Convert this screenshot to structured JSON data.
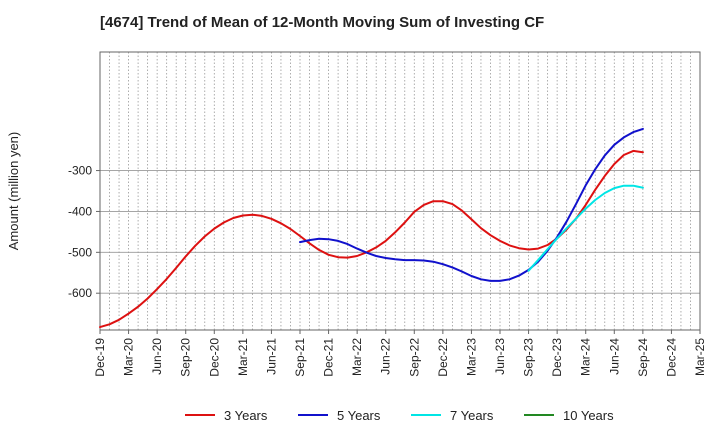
{
  "chart_data": {
    "type": "line",
    "title": "[4674]  Trend of Mean of 12-Month Moving Sum of Investing CF",
    "xlabel": "",
    "ylabel": "Amount (million yen)",
    "ylim": [
      -690,
      -10
    ],
    "yticks": [
      -300,
      -400,
      -500,
      -600
    ],
    "ytick_labels": [
      "-300",
      "-400",
      "-500",
      "-600"
    ],
    "x_tick_labels": [
      "Dec-19",
      "Mar-20",
      "Jun-20",
      "Sep-20",
      "Dec-20",
      "Mar-21",
      "Jun-21",
      "Sep-21",
      "Dec-21",
      "Mar-22",
      "Jun-22",
      "Sep-22",
      "Dec-22",
      "Mar-23",
      "Jun-23",
      "Sep-23",
      "Dec-23",
      "Mar-24",
      "Jun-24",
      "Sep-24",
      "Dec-24",
      "Mar-25"
    ],
    "grid": true,
    "legend_position": "bottom",
    "series": [
      {
        "name": "3 Years",
        "color": "#dd1111",
        "x": [
          "Dec-19",
          "Jan-20",
          "Feb-20",
          "Mar-20",
          "Apr-20",
          "May-20",
          "Jun-20",
          "Jul-20",
          "Aug-20",
          "Sep-20",
          "Oct-20",
          "Nov-20",
          "Dec-20",
          "Jan-21",
          "Feb-21",
          "Mar-21",
          "Apr-21",
          "May-21",
          "Jun-21",
          "Jul-21",
          "Aug-21",
          "Sep-21",
          "Oct-21",
          "Nov-21",
          "Dec-21",
          "Jan-22",
          "Feb-22",
          "Mar-22",
          "Apr-22",
          "May-22",
          "Jun-22",
          "Jul-22",
          "Aug-22",
          "Sep-22",
          "Oct-22",
          "Nov-22",
          "Dec-22",
          "Jan-23",
          "Feb-23",
          "Mar-23",
          "Apr-23",
          "May-23",
          "Jun-23",
          "Jul-23",
          "Aug-23",
          "Sep-23",
          "Oct-23",
          "Nov-23",
          "Dec-23",
          "Jan-24",
          "Feb-24",
          "Mar-24",
          "Apr-24",
          "May-24",
          "Jun-24",
          "Jul-24",
          "Aug-24",
          "Sep-24"
        ],
        "values": [
          -683,
          -676,
          -665,
          -650,
          -633,
          -613,
          -590,
          -565,
          -538,
          -510,
          -484,
          -461,
          -442,
          -427,
          -416,
          -410,
          -408,
          -411,
          -418,
          -429,
          -443,
          -460,
          -478,
          -494,
          -506,
          -512,
          -513,
          -509,
          -500,
          -488,
          -472,
          -451,
          -427,
          -401,
          -384,
          -375,
          -375,
          -382,
          -398,
          -419,
          -441,
          -458,
          -472,
          -483,
          -490,
          -493,
          -491,
          -482,
          -466,
          -444,
          -417,
          -384,
          -347,
          -313,
          -284,
          -262,
          -252,
          -255
        ]
      },
      {
        "name": "5 Years",
        "color": "#1111cc",
        "x": [
          "Sep-21",
          "Oct-21",
          "Nov-21",
          "Dec-21",
          "Jan-22",
          "Feb-22",
          "Mar-22",
          "Apr-22",
          "May-22",
          "Jun-22",
          "Jul-22",
          "Aug-22",
          "Sep-22",
          "Oct-22",
          "Nov-22",
          "Dec-22",
          "Jan-23",
          "Feb-23",
          "Mar-23",
          "Apr-23",
          "May-23",
          "Jun-23",
          "Jul-23",
          "Aug-23",
          "Sep-23",
          "Oct-23",
          "Nov-23",
          "Dec-23",
          "Jan-24",
          "Feb-24",
          "Mar-24",
          "Apr-24",
          "May-24",
          "Jun-24",
          "Jul-24",
          "Aug-24",
          "Sep-24"
        ],
        "values": [
          -475,
          -470,
          -467,
          -468,
          -472,
          -480,
          -491,
          -501,
          -509,
          -514,
          -517,
          -519,
          -519,
          -520,
          -523,
          -529,
          -537,
          -547,
          -558,
          -566,
          -570,
          -570,
          -566,
          -557,
          -543,
          -523,
          -496,
          -463,
          -424,
          -381,
          -336,
          -297,
          -263,
          -237,
          -219,
          -206,
          -198
        ]
      },
      {
        "name": "7 Years",
        "color": "#00e5e5",
        "x": [
          "Sep-23",
          "Oct-23",
          "Nov-23",
          "Dec-23",
          "Jan-24",
          "Feb-24",
          "Mar-24",
          "Apr-24",
          "May-24",
          "Jun-24",
          "Jul-24",
          "Aug-24",
          "Sep-24"
        ],
        "values": [
          -545,
          -519,
          -492,
          -466,
          -441,
          -417,
          -393,
          -372,
          -355,
          -343,
          -337,
          -337,
          -342
        ]
      },
      {
        "name": "10 Years",
        "color": "#228822",
        "x": [],
        "values": []
      }
    ]
  }
}
